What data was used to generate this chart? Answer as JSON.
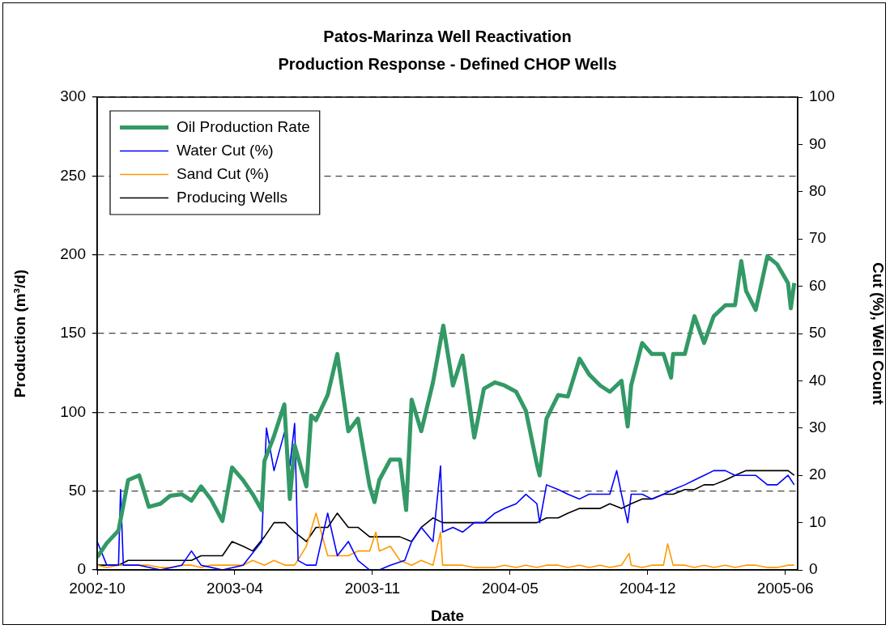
{
  "chart_data": {
    "type": "line",
    "title": "Patos-Marinza Well Reactivation",
    "subtitle": "Production Response - Defined CHOP Wells",
    "xlabel": "Date",
    "ylabel": "Production (m³/d)",
    "y2label": "Cut (%), Well Count",
    "xlim": [
      "2002-10-01",
      "2005-07-15"
    ],
    "xticks": [
      {
        "value": "2002-10-01",
        "label": "2002-10"
      },
      {
        "value": "2003-04-19",
        "label": "2003-04"
      },
      {
        "value": "2003-11-05",
        "label": "2003-11"
      },
      {
        "value": "2004-05-23",
        "label": "2004-05"
      },
      {
        "value": "2004-12-09",
        "label": "2004-12"
      },
      {
        "value": "2005-06-27",
        "label": "2005-06"
      }
    ],
    "ylim": [
      0,
      300
    ],
    "yticks": [
      0,
      50,
      100,
      150,
      200,
      250,
      300
    ],
    "y2lim": [
      0,
      100
    ],
    "y2ticks": [
      0,
      10,
      20,
      30,
      40,
      50,
      60,
      70,
      80,
      90,
      100
    ],
    "grid": "y",
    "legend": "top left",
    "series": [
      {
        "name": "Oil Production Rate",
        "color": "#339966",
        "x": [
          "2002-10-01",
          "2002-10-15",
          "2002-11-01",
          "2002-11-15",
          "2002-12-01",
          "2002-12-15",
          "2003-01-01",
          "2003-01-15",
          "2003-02-01",
          "2003-02-15",
          "2003-03-01",
          "2003-03-15",
          "2003-04-01",
          "2003-04-15",
          "2003-05-01",
          "2003-05-15",
          "2003-05-28",
          "2003-06-01",
          "2003-06-15",
          "2003-06-30",
          "2003-07-08",
          "2003-07-15",
          "2003-08-01",
          "2003-08-08",
          "2003-08-15",
          "2003-09-01",
          "2003-09-15",
          "2003-10-01",
          "2003-10-15",
          "2003-11-01",
          "2003-11-08",
          "2003-11-15",
          "2003-12-01",
          "2003-12-15",
          "2003-12-24",
          "2004-01-01",
          "2004-01-15",
          "2004-02-01",
          "2004-02-16",
          "2004-03-01",
          "2004-03-15",
          "2004-04-01",
          "2004-04-15",
          "2004-05-01",
          "2004-05-15",
          "2004-06-01",
          "2004-06-15",
          "2004-07-01",
          "2004-07-05",
          "2004-07-15",
          "2004-08-01",
          "2004-08-15",
          "2004-09-01",
          "2004-09-15",
          "2004-10-01",
          "2004-10-15",
          "2004-11-01",
          "2004-11-10",
          "2004-11-15",
          "2004-12-01",
          "2004-12-15",
          "2005-01-01",
          "2005-01-12",
          "2005-01-15",
          "2005-02-01",
          "2005-02-15",
          "2005-03-01",
          "2005-03-15",
          "2005-04-01",
          "2005-04-15",
          "2005-04-24",
          "2005-05-01",
          "2005-05-15",
          "2005-06-01",
          "2005-06-15",
          "2005-07-01",
          "2005-07-05",
          "2005-07-10"
        ],
        "values": [
          8,
          17,
          25,
          57,
          60,
          40,
          42,
          47,
          48,
          44,
          53,
          45,
          31,
          65,
          57,
          48,
          38,
          69,
          85,
          105,
          45,
          79,
          53,
          98,
          95,
          111,
          137,
          88,
          96,
          53,
          43,
          57,
          70,
          70,
          38,
          108,
          88,
          119,
          155,
          117,
          136,
          84,
          115,
          119,
          117,
          113,
          101,
          67,
          60,
          96,
          111,
          110,
          134,
          124,
          117,
          113,
          120,
          91,
          117,
          144,
          137,
          137,
          122,
          137,
          137,
          161,
          144,
          161,
          168,
          168,
          196,
          177,
          165,
          199,
          194,
          182,
          166,
          182
        ]
      },
      {
        "name": "Water Cut (%)",
        "color": "#0000ff",
        "axis": "y2",
        "x": [
          "2002-10-01",
          "2002-10-15",
          "2002-11-01",
          "2002-11-04",
          "2002-11-08",
          "2002-12-01",
          "2003-01-01",
          "2003-02-01",
          "2003-02-15",
          "2003-03-01",
          "2003-04-01",
          "2003-05-01",
          "2003-05-28",
          "2003-06-04",
          "2003-06-15",
          "2003-06-30",
          "2003-07-08",
          "2003-07-15",
          "2003-07-20",
          "2003-08-01",
          "2003-08-15",
          "2003-09-01",
          "2003-09-15",
          "2003-10-01",
          "2003-10-15",
          "2003-11-01",
          "2003-11-15",
          "2003-12-01",
          "2003-12-22",
          "2004-01-01",
          "2004-01-15",
          "2004-02-01",
          "2004-02-12",
          "2004-02-15",
          "2004-03-01",
          "2004-03-15",
          "2004-04-01",
          "2004-04-15",
          "2004-05-01",
          "2004-05-15",
          "2004-06-01",
          "2004-06-15",
          "2004-07-01",
          "2004-07-05",
          "2004-07-15",
          "2004-08-01",
          "2004-08-15",
          "2004-09-01",
          "2004-09-15",
          "2004-10-01",
          "2004-10-15",
          "2004-10-25",
          "2004-11-01",
          "2004-11-10",
          "2004-11-15",
          "2004-12-01",
          "2004-12-15",
          "2005-01-01",
          "2005-01-15",
          "2005-02-01",
          "2005-02-15",
          "2005-03-01",
          "2005-03-15",
          "2005-04-01",
          "2005-04-15",
          "2005-05-01",
          "2005-05-15",
          "2005-06-01",
          "2005-06-15",
          "2005-07-01",
          "2005-07-10"
        ],
        "values": [
          6,
          1,
          1,
          17,
          1,
          1,
          0,
          1,
          4,
          1,
          0,
          1,
          6,
          30,
          21,
          29,
          22,
          31,
          2,
          1,
          1,
          12,
          3,
          6,
          2,
          0,
          0,
          1,
          2,
          6,
          9,
          6,
          22,
          8,
          9,
          8,
          10,
          10,
          12,
          13,
          14,
          16,
          14,
          10,
          18,
          17,
          16,
          15,
          16,
          16,
          16,
          21,
          16,
          10,
          16,
          16,
          15,
          16,
          17,
          18,
          19,
          20,
          21,
          21,
          20,
          20,
          20,
          18,
          18,
          20,
          18
        ]
      },
      {
        "name": "Sand Cut (%)",
        "color": "#ff9900",
        "axis": "y2",
        "x": [
          "2002-10-01",
          "2002-10-15",
          "2002-11-01",
          "2002-11-15",
          "2002-12-01",
          "2002-12-15",
          "2003-01-01",
          "2003-01-15",
          "2003-02-01",
          "2003-02-15",
          "2003-03-01",
          "2003-03-15",
          "2003-04-01",
          "2003-04-15",
          "2003-05-01",
          "2003-05-15",
          "2003-06-01",
          "2003-06-15",
          "2003-07-01",
          "2003-07-15",
          "2003-08-01",
          "2003-08-15",
          "2003-09-01",
          "2003-09-15",
          "2003-10-01",
          "2003-10-15",
          "2003-11-01",
          "2003-11-10",
          "2003-11-15",
          "2003-12-01",
          "2003-12-15",
          "2004-01-01",
          "2004-01-15",
          "2004-02-01",
          "2004-02-12",
          "2004-02-15",
          "2004-03-01",
          "2004-03-15",
          "2004-04-01",
          "2004-04-15",
          "2004-05-01",
          "2004-05-15",
          "2004-06-01",
          "2004-06-15",
          "2004-07-01",
          "2004-07-15",
          "2004-08-01",
          "2004-08-15",
          "2004-09-01",
          "2004-09-15",
          "2004-10-01",
          "2004-10-15",
          "2004-11-01",
          "2004-11-12",
          "2004-11-15",
          "2004-12-01",
          "2004-12-15",
          "2005-01-01",
          "2005-01-07",
          "2005-01-15",
          "2005-02-01",
          "2005-02-15",
          "2005-03-01",
          "2005-03-15",
          "2005-04-01",
          "2005-04-15",
          "2005-05-01",
          "2005-05-15",
          "2005-06-01",
          "2005-06-15",
          "2005-07-01",
          "2005-07-10"
        ],
        "values": [
          1,
          0.5,
          1,
          1,
          1,
          1,
          0.5,
          0.5,
          1,
          1,
          0.5,
          1,
          1,
          1,
          1,
          2,
          1,
          2,
          1,
          1,
          5,
          12,
          3,
          3,
          3,
          4,
          4,
          8,
          4,
          5,
          2,
          1,
          2,
          1,
          8,
          1,
          1,
          1,
          0.5,
          0.5,
          0.5,
          1,
          0.5,
          1,
          0.5,
          1,
          1,
          0.5,
          1,
          0.5,
          1,
          0.5,
          1,
          3.5,
          1,
          0.5,
          1,
          1,
          5.5,
          1,
          1,
          0.5,
          1,
          0.5,
          1,
          0.5,
          1,
          1,
          0.5,
          0.5,
          1,
          1
        ]
      },
      {
        "name": "Producing Wells",
        "color": "#000000",
        "axis": "y2",
        "x": [
          "2002-10-01",
          "2002-10-15",
          "2002-11-01",
          "2002-11-15",
          "2002-12-01",
          "2002-12-15",
          "2003-01-01",
          "2003-01-15",
          "2003-02-01",
          "2003-02-15",
          "2003-03-01",
          "2003-03-15",
          "2003-04-01",
          "2003-04-15",
          "2003-05-01",
          "2003-05-15",
          "2003-06-01",
          "2003-06-15",
          "2003-07-01",
          "2003-07-15",
          "2003-08-01",
          "2003-08-15",
          "2003-09-01",
          "2003-09-15",
          "2003-10-01",
          "2003-10-15",
          "2003-11-01",
          "2003-11-15",
          "2003-12-01",
          "2003-12-15",
          "2004-01-01",
          "2004-01-15",
          "2004-02-01",
          "2004-02-15",
          "2004-03-01",
          "2004-03-15",
          "2004-04-01",
          "2004-04-15",
          "2004-05-01",
          "2004-05-15",
          "2004-06-01",
          "2004-06-15",
          "2004-07-01",
          "2004-07-15",
          "2004-08-01",
          "2004-08-15",
          "2004-09-01",
          "2004-09-15",
          "2004-10-01",
          "2004-10-15",
          "2004-11-01",
          "2004-11-15",
          "2004-12-01",
          "2004-12-15",
          "2005-01-01",
          "2005-01-15",
          "2005-02-01",
          "2005-02-15",
          "2005-03-01",
          "2005-03-15",
          "2005-04-01",
          "2005-04-15",
          "2005-05-01",
          "2005-05-15",
          "2005-06-01",
          "2005-06-15",
          "2005-07-01",
          "2005-07-10"
        ],
        "values": [
          1,
          1,
          1,
          2,
          2,
          2,
          2,
          2,
          2,
          2,
          3,
          3,
          3,
          6,
          5,
          4,
          7,
          10,
          10,
          8,
          6,
          9,
          9,
          12,
          9,
          9,
          7,
          7,
          7,
          7,
          6,
          9,
          11,
          10,
          10,
          10,
          10,
          10,
          10,
          10,
          10,
          10,
          10,
          11,
          11,
          12,
          13,
          13,
          13,
          14,
          13,
          14,
          15,
          15,
          16,
          16,
          17,
          17,
          18,
          18,
          19,
          20,
          21,
          21,
          21,
          21,
          21,
          20
        ]
      }
    ]
  }
}
